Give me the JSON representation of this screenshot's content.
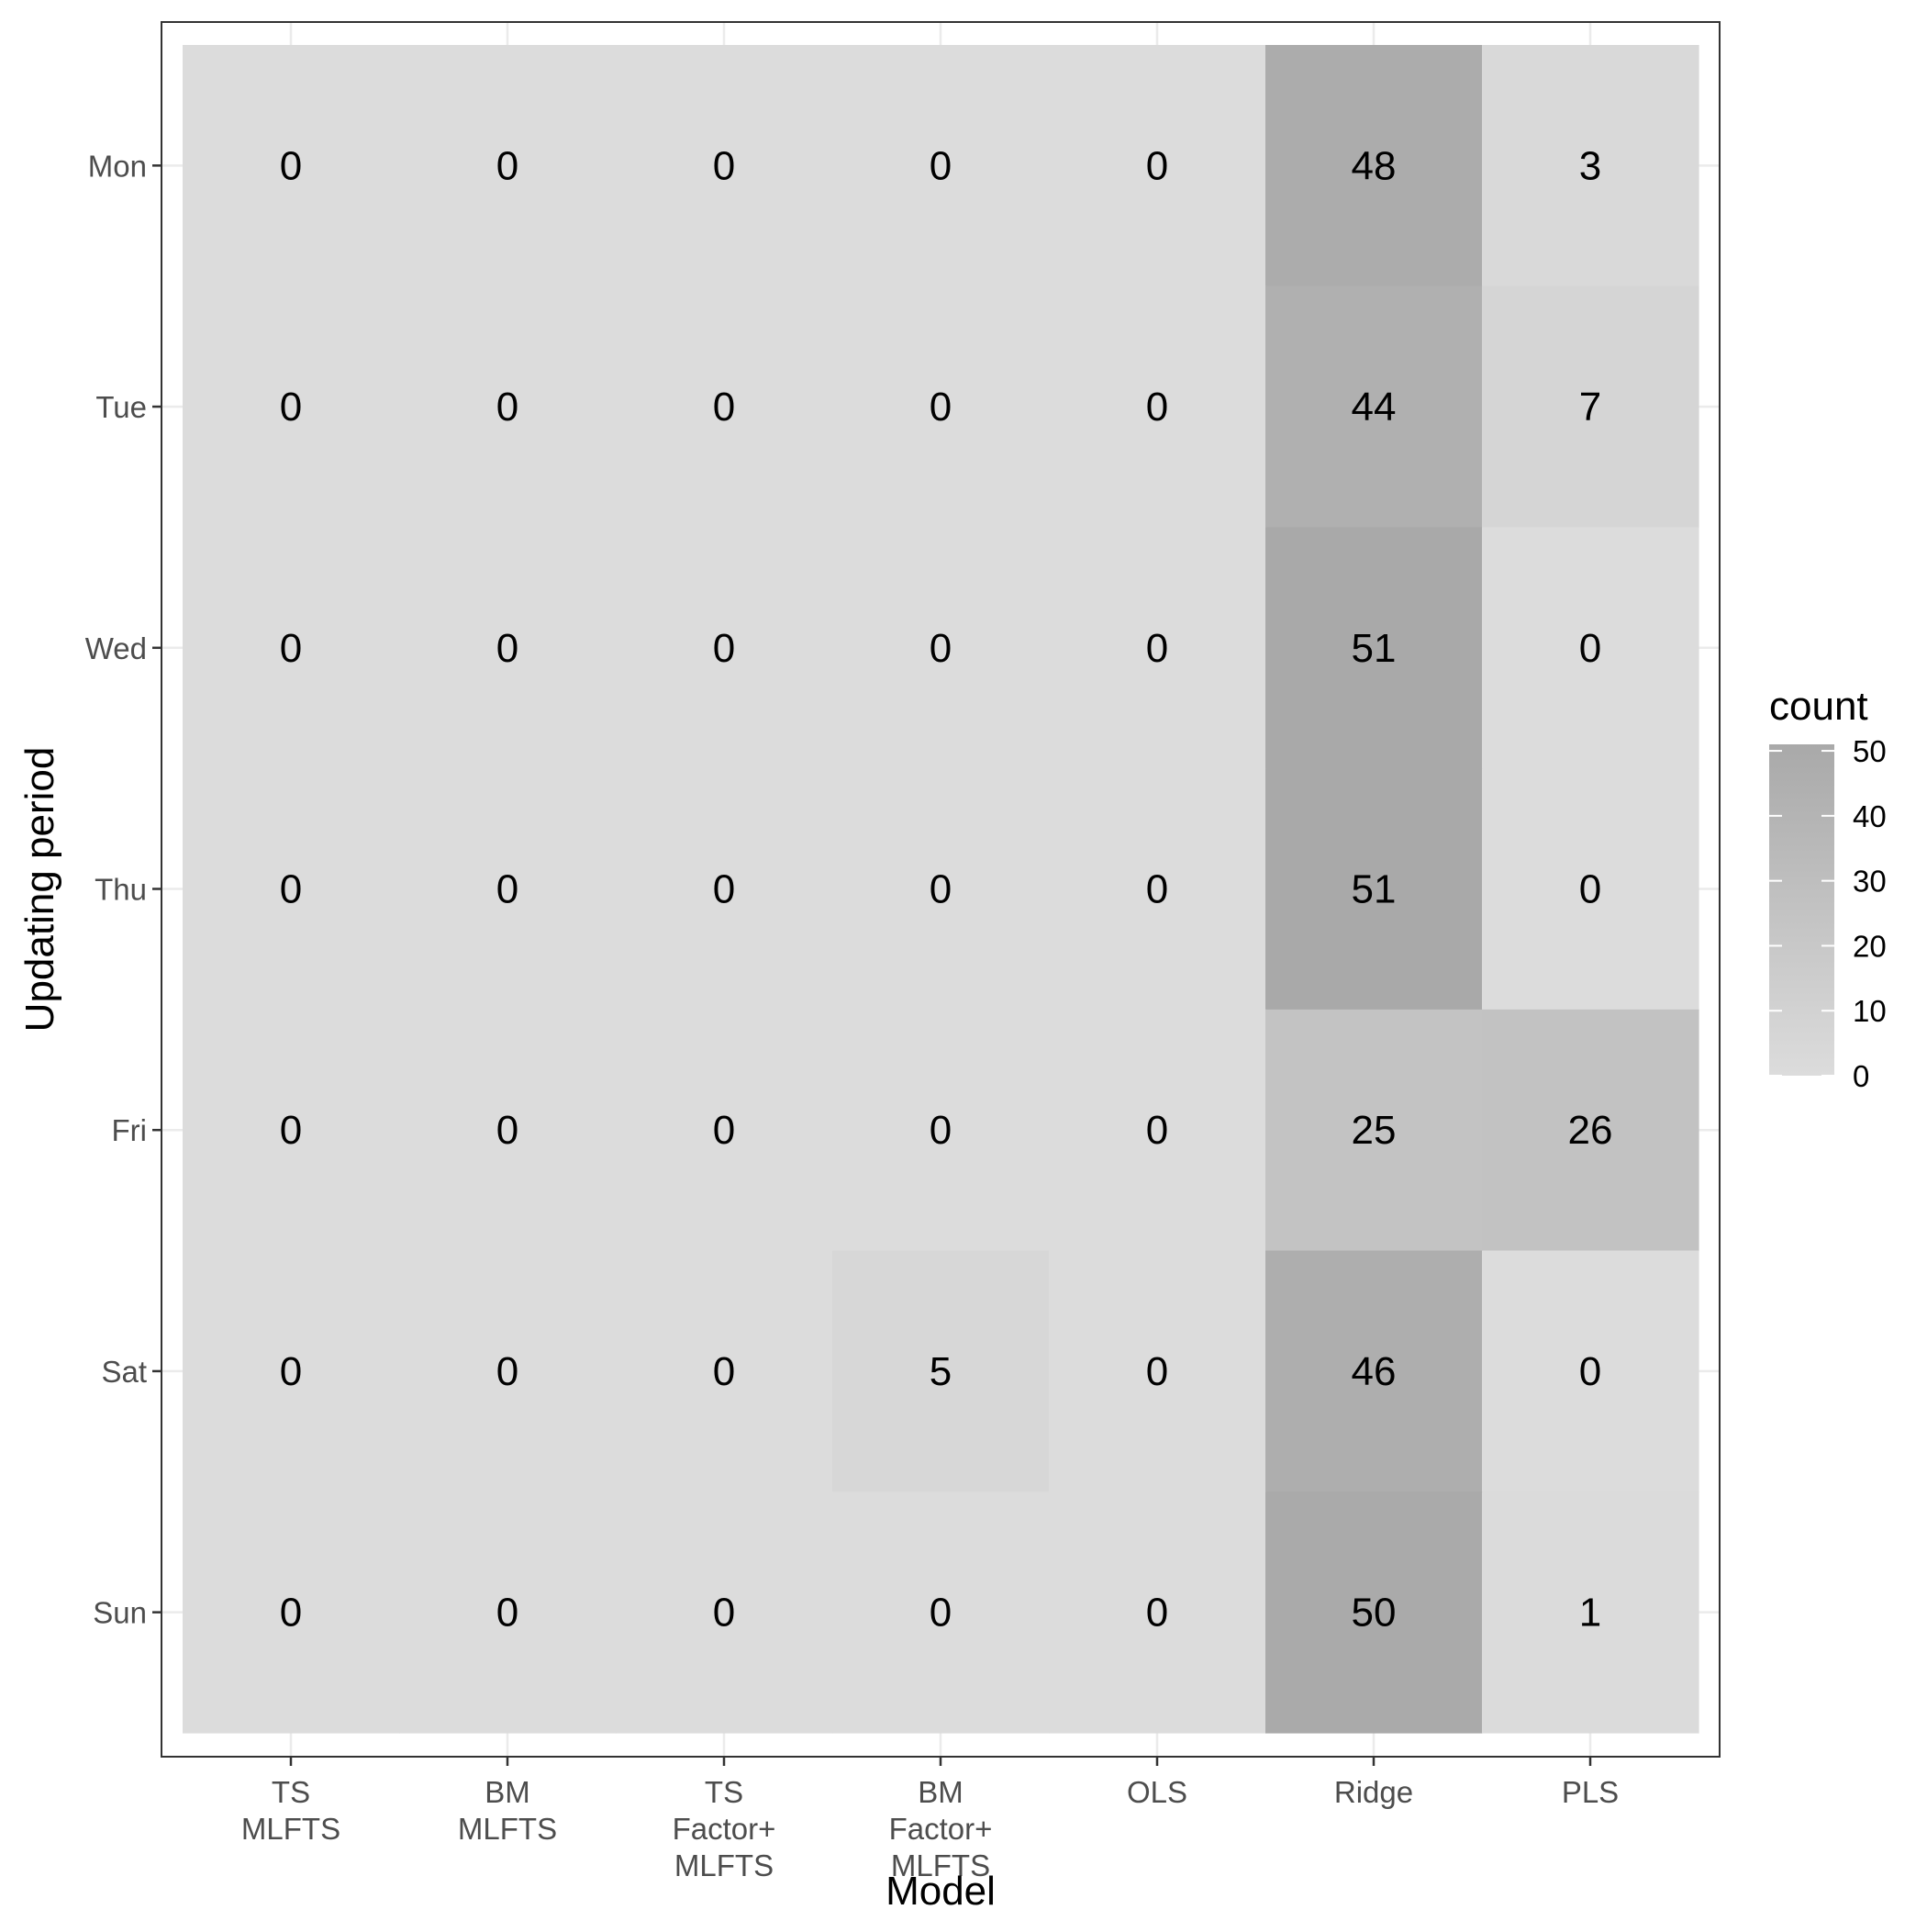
{
  "chart_data": {
    "type": "heatmap",
    "xlabel": "Model",
    "ylabel": "Updating period",
    "x_categories": [
      [
        "TS",
        "MLFTS"
      ],
      [
        "BM",
        "MLFTS"
      ],
      [
        "TS",
        "Factor+",
        "MLFTS"
      ],
      [
        "BM",
        "Factor+",
        "MLFTS"
      ],
      [
        "OLS"
      ],
      [
        "Ridge"
      ],
      [
        "PLS"
      ]
    ],
    "y_categories": [
      "Mon",
      "Tue",
      "Wed",
      "Thu",
      "Fri",
      "Sat",
      "Sun"
    ],
    "values": [
      [
        0,
        0,
        0,
        0,
        0,
        48,
        3
      ],
      [
        0,
        0,
        0,
        0,
        0,
        44,
        7
      ],
      [
        0,
        0,
        0,
        0,
        0,
        51,
        0
      ],
      [
        0,
        0,
        0,
        0,
        0,
        51,
        0
      ],
      [
        0,
        0,
        0,
        0,
        0,
        25,
        26
      ],
      [
        0,
        0,
        0,
        5,
        0,
        46,
        0
      ],
      [
        0,
        0,
        0,
        0,
        0,
        50,
        1
      ]
    ],
    "legend": {
      "title": "count",
      "ticks": [
        0,
        10,
        20,
        30,
        40,
        50
      ],
      "range": [
        0,
        51
      ],
      "color_low": "#dcdcdc",
      "color_high": "#a9a9a9",
      "position": "right"
    },
    "grid": true,
    "theme": "bw"
  }
}
